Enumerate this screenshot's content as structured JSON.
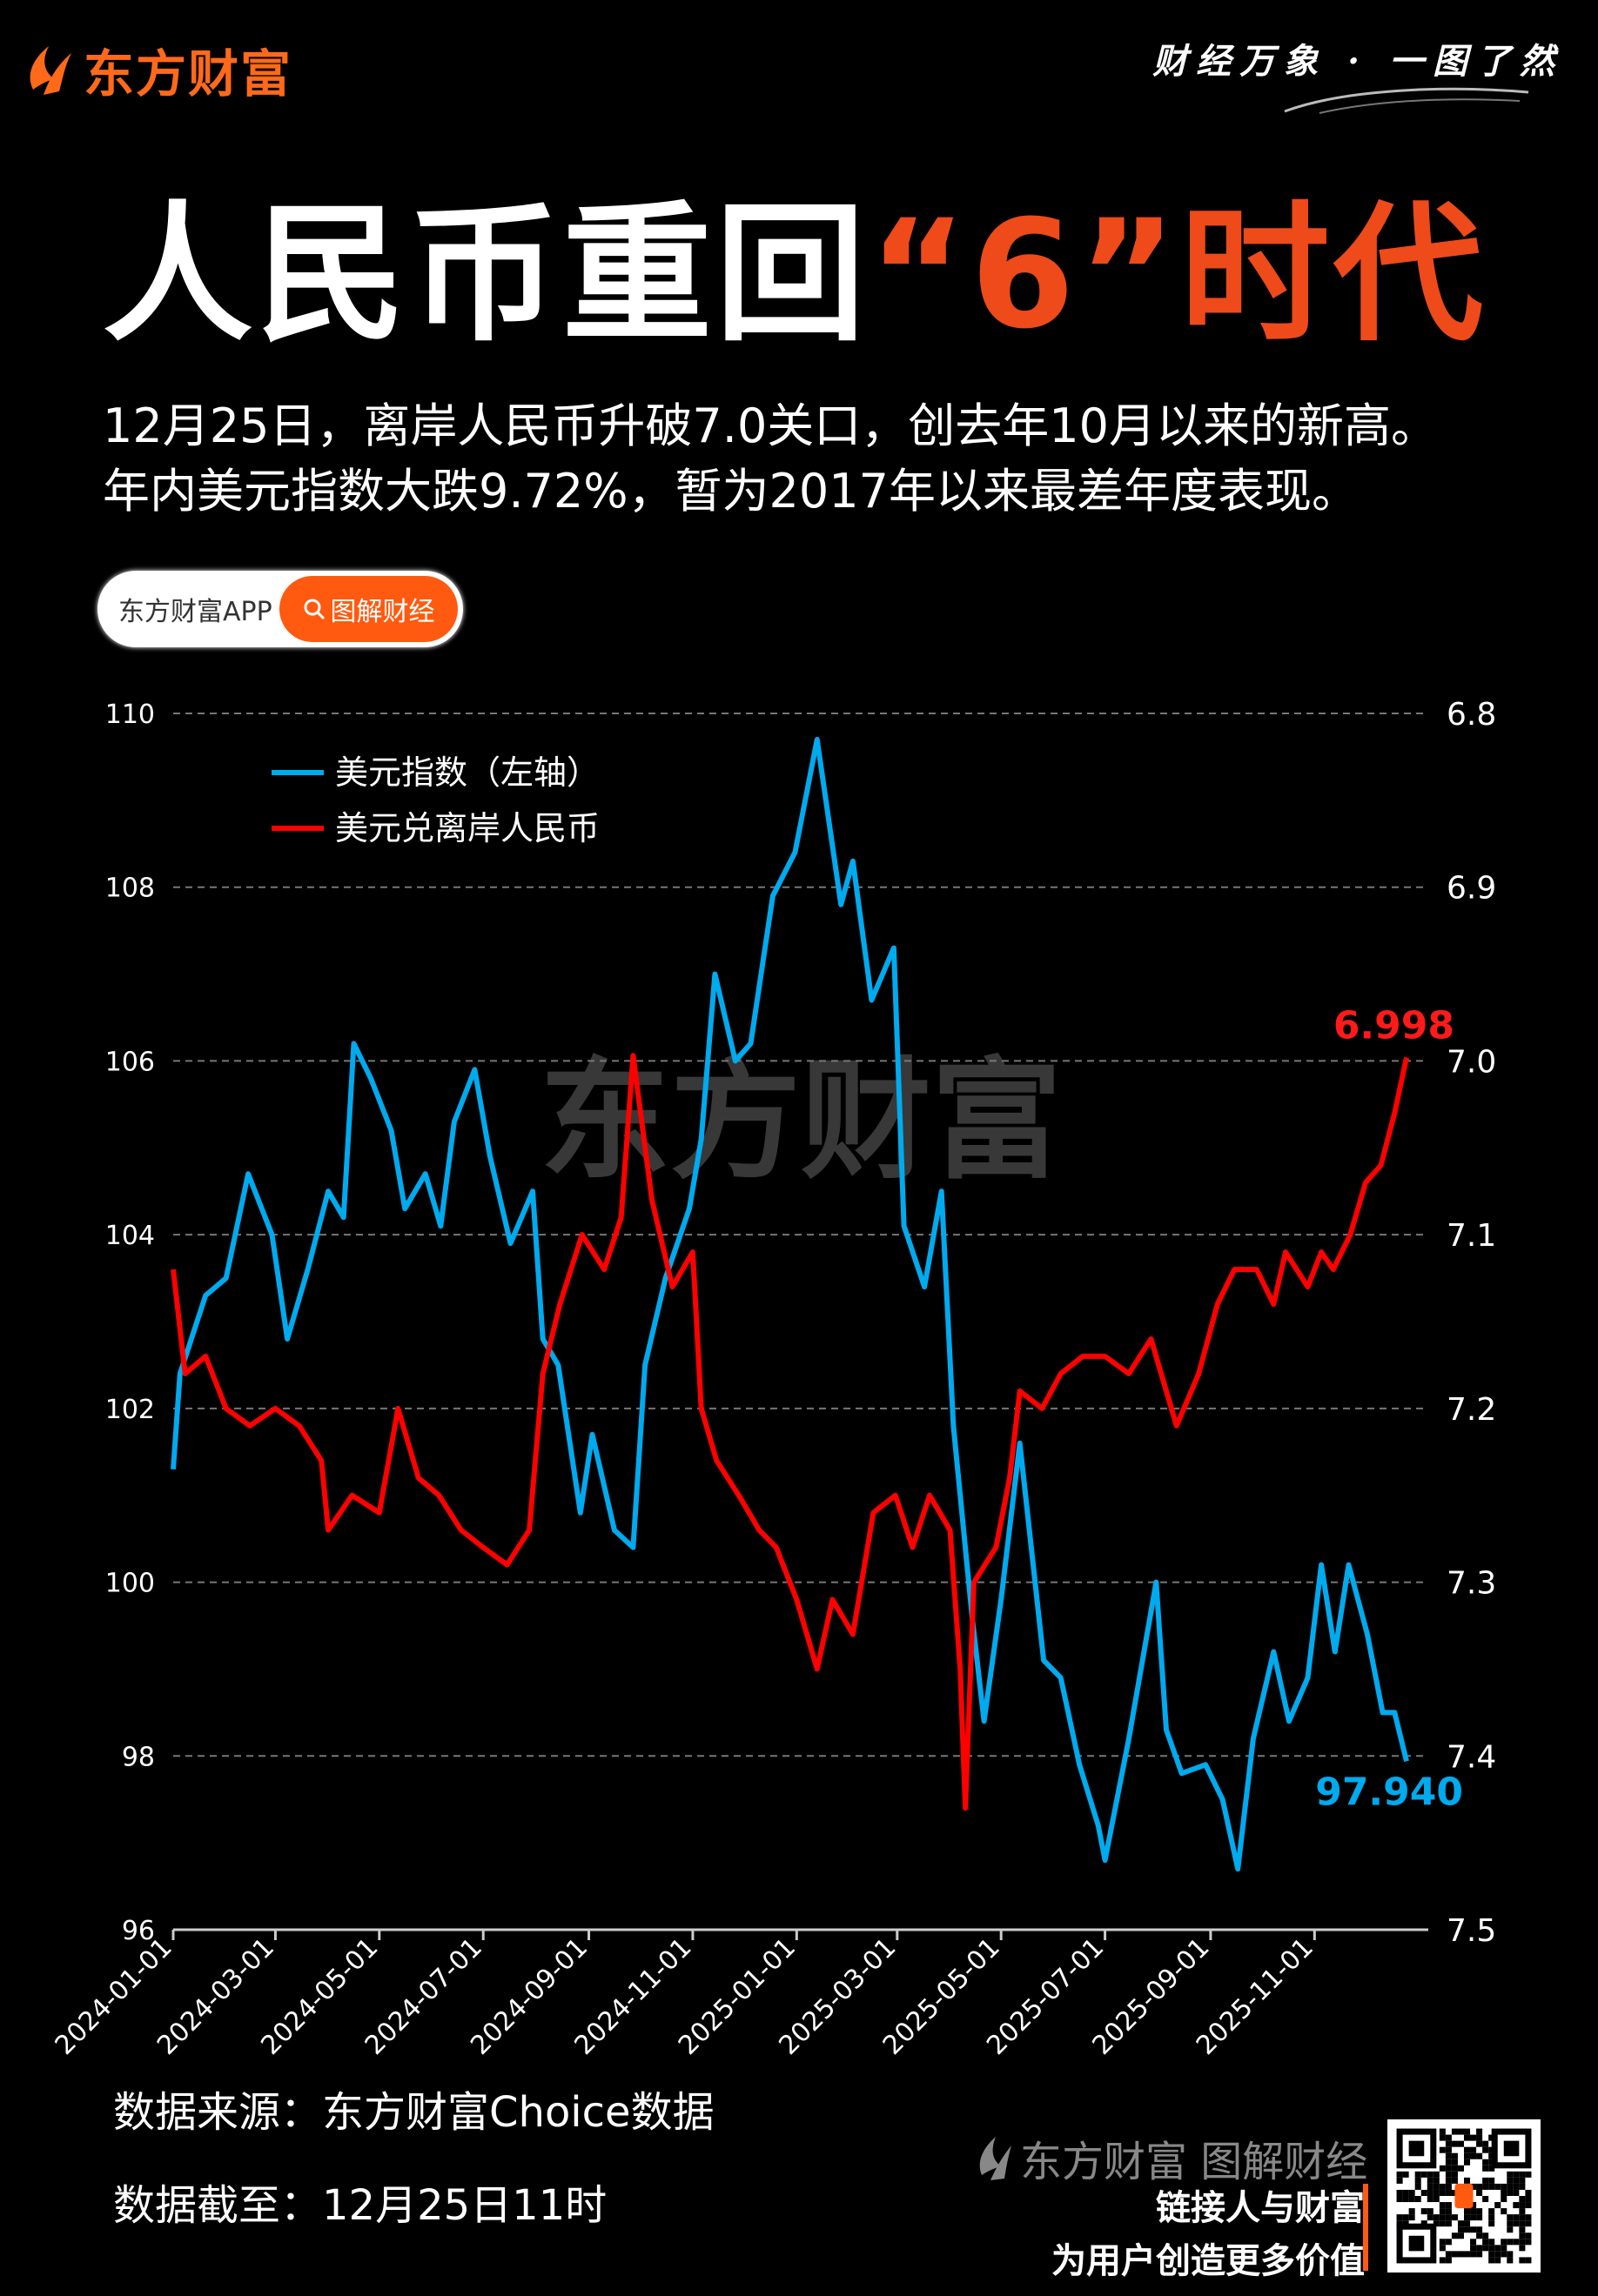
{
  "header": {
    "brand": "东方财富",
    "slogan": "财经万象 · 一图了然",
    "title_main": "人民币重回",
    "title_highlight": "“6”时代",
    "subtitle_lines": [
      "12月25日，离岸人民币升破7.0关口，创去年10月以来的新高。",
      "年内美元指数大跌9.72%，暂为2017年以来最差年度表现。"
    ],
    "pill_app": "东方财富APP",
    "pill_button": "图解财经"
  },
  "colors": {
    "accent": "#ff5a10",
    "title_highlight": "#ee4a1a",
    "dxy": "#00aaee",
    "cnh": "#ff0000",
    "background": "#000000"
  },
  "chart_data": {
    "type": "line",
    "watermark": "东方财富",
    "x_ticks": [
      "2024-01-01",
      "2024-03-01",
      "2024-05-01",
      "2024-07-01",
      "2024-09-01",
      "2024-11-01",
      "2025-01-01",
      "2025-03-01",
      "2025-05-01",
      "2025-07-01",
      "2025-09-01",
      "2025-11-01"
    ],
    "y_left": {
      "ticks": [
        "96",
        "98",
        "100",
        "102",
        "104",
        "106",
        "108",
        "110"
      ],
      "range": [
        96,
        110
      ]
    },
    "y_right": {
      "ticks": [
        "6.8",
        "6.9",
        "7.0",
        "7.1",
        "7.2",
        "7.3",
        "7.4",
        "7.5"
      ],
      "range": [
        6.8,
        7.5
      ],
      "inverted": true
    },
    "grid": "horizontal dashed",
    "legend_position": "top-left",
    "series": [
      {
        "name": "美元指数（左轴）",
        "axis": "left",
        "end_label": "97.940",
        "points": [
          [
            "2024-01-01",
            101.3
          ],
          [
            "2024-01-05",
            102.4
          ],
          [
            "2024-01-20",
            103.3
          ],
          [
            "2024-02-01",
            103.5
          ],
          [
            "2024-02-14",
            104.7
          ],
          [
            "2024-02-28",
            104.0
          ],
          [
            "2024-03-08",
            102.8
          ],
          [
            "2024-03-20",
            103.6
          ],
          [
            "2024-04-01",
            104.5
          ],
          [
            "2024-04-10",
            104.2
          ],
          [
            "2024-04-16",
            106.2
          ],
          [
            "2024-04-26",
            105.8
          ],
          [
            "2024-05-08",
            105.2
          ],
          [
            "2024-05-16",
            104.3
          ],
          [
            "2024-05-28",
            104.7
          ],
          [
            "2024-06-06",
            104.1
          ],
          [
            "2024-06-14",
            105.3
          ],
          [
            "2024-06-26",
            105.9
          ],
          [
            "2024-07-05",
            104.9
          ],
          [
            "2024-07-17",
            103.9
          ],
          [
            "2024-07-30",
            104.5
          ],
          [
            "2024-08-05",
            102.8
          ],
          [
            "2024-08-14",
            102.5
          ],
          [
            "2024-08-27",
            100.8
          ],
          [
            "2024-09-03",
            101.7
          ],
          [
            "2024-09-16",
            100.6
          ],
          [
            "2024-09-27",
            100.4
          ],
          [
            "2024-10-04",
            102.5
          ],
          [
            "2024-10-16",
            103.5
          ],
          [
            "2024-10-30",
            104.3
          ],
          [
            "2024-11-06",
            105.1
          ],
          [
            "2024-11-14",
            107.0
          ],
          [
            "2024-11-26",
            106.0
          ],
          [
            "2024-12-05",
            106.2
          ],
          [
            "2024-12-18",
            107.9
          ],
          [
            "2024-12-31",
            108.4
          ],
          [
            "2025-01-13",
            109.7
          ],
          [
            "2025-01-27",
            107.8
          ],
          [
            "2025-02-03",
            108.3
          ],
          [
            "2025-02-14",
            106.7
          ],
          [
            "2025-02-27",
            107.3
          ],
          [
            "2025-03-05",
            104.1
          ],
          [
            "2025-03-17",
            103.4
          ],
          [
            "2025-03-27",
            104.5
          ],
          [
            "2025-04-03",
            101.8
          ],
          [
            "2025-04-14",
            99.6
          ],
          [
            "2025-04-21",
            98.4
          ],
          [
            "2025-05-01",
            99.8
          ],
          [
            "2025-05-12",
            101.6
          ],
          [
            "2025-05-26",
            99.1
          ],
          [
            "2025-06-05",
            98.9
          ],
          [
            "2025-06-16",
            97.9
          ],
          [
            "2025-06-27",
            97.2
          ],
          [
            "2025-07-01",
            96.8
          ],
          [
            "2025-07-15",
            98.2
          ],
          [
            "2025-07-31",
            100.0
          ],
          [
            "2025-08-06",
            98.3
          ],
          [
            "2025-08-15",
            97.8
          ],
          [
            "2025-08-29",
            97.9
          ],
          [
            "2025-09-08",
            97.5
          ],
          [
            "2025-09-17",
            96.7
          ],
          [
            "2025-09-26",
            98.2
          ],
          [
            "2025-10-08",
            99.2
          ],
          [
            "2025-10-17",
            98.4
          ],
          [
            "2025-10-28",
            98.9
          ],
          [
            "2025-11-05",
            100.2
          ],
          [
            "2025-11-13",
            99.2
          ],
          [
            "2025-11-21",
            100.2
          ],
          [
            "2025-12-02",
            99.4
          ],
          [
            "2025-12-11",
            98.5
          ],
          [
            "2025-12-18",
            98.5
          ],
          [
            "2025-12-25",
            97.94
          ]
        ]
      },
      {
        "name": "美元兑离岸人民币",
        "axis": "right",
        "end_label": "6.998",
        "points": [
          [
            "2024-01-01",
            7.12
          ],
          [
            "2024-01-08",
            7.18
          ],
          [
            "2024-01-20",
            7.17
          ],
          [
            "2024-02-01",
            7.2
          ],
          [
            "2024-02-15",
            7.21
          ],
          [
            "2024-03-01",
            7.2
          ],
          [
            "2024-03-15",
            7.21
          ],
          [
            "2024-03-28",
            7.23
          ],
          [
            "2024-04-01",
            7.27
          ],
          [
            "2024-04-15",
            7.25
          ],
          [
            "2024-05-01",
            7.26
          ],
          [
            "2024-05-12",
            7.2
          ],
          [
            "2024-05-24",
            7.24
          ],
          [
            "2024-06-05",
            7.25
          ],
          [
            "2024-06-18",
            7.27
          ],
          [
            "2024-07-01",
            7.28
          ],
          [
            "2024-07-15",
            7.29
          ],
          [
            "2024-07-28",
            7.27
          ],
          [
            "2024-08-05",
            7.18
          ],
          [
            "2024-08-15",
            7.14
          ],
          [
            "2024-08-28",
            7.1
          ],
          [
            "2024-09-10",
            7.12
          ],
          [
            "2024-09-20",
            7.09
          ],
          [
            "2024-09-27",
            6.997
          ],
          [
            "2024-10-08",
            7.08
          ],
          [
            "2024-10-20",
            7.13
          ],
          [
            "2024-11-01",
            7.11
          ],
          [
            "2024-11-06",
            7.2
          ],
          [
            "2024-11-15",
            7.23
          ],
          [
            "2024-11-28",
            7.25
          ],
          [
            "2024-12-10",
            7.27
          ],
          [
            "2024-12-20",
            7.28
          ],
          [
            "2025-01-01",
            7.31
          ],
          [
            "2025-01-13",
            7.35
          ],
          [
            "2025-01-22",
            7.31
          ],
          [
            "2025-02-03",
            7.33
          ],
          [
            "2025-02-15",
            7.26
          ],
          [
            "2025-02-28",
            7.25
          ],
          [
            "2025-03-10",
            7.28
          ],
          [
            "2025-03-20",
            7.25
          ],
          [
            "2025-04-01",
            7.27
          ],
          [
            "2025-04-07",
            7.35
          ],
          [
            "2025-04-10",
            7.43
          ],
          [
            "2025-04-15",
            7.3
          ],
          [
            "2025-04-28",
            7.28
          ],
          [
            "2025-05-06",
            7.24
          ],
          [
            "2025-05-12",
            7.19
          ],
          [
            "2025-05-25",
            7.2
          ],
          [
            "2025-06-05",
            7.18
          ],
          [
            "2025-06-18",
            7.17
          ],
          [
            "2025-07-01",
            7.17
          ],
          [
            "2025-07-15",
            7.18
          ],
          [
            "2025-07-28",
            7.16
          ],
          [
            "2025-08-06",
            7.19
          ],
          [
            "2025-08-12",
            7.21
          ],
          [
            "2025-08-25",
            7.18
          ],
          [
            "2025-09-05",
            7.14
          ],
          [
            "2025-09-15",
            7.12
          ],
          [
            "2025-09-28",
            7.12
          ],
          [
            "2025-10-08",
            7.14
          ],
          [
            "2025-10-15",
            7.11
          ],
          [
            "2025-10-28",
            7.13
          ],
          [
            "2025-11-05",
            7.11
          ],
          [
            "2025-11-12",
            7.12
          ],
          [
            "2025-11-22",
            7.1
          ],
          [
            "2025-12-01",
            7.07
          ],
          [
            "2025-12-10",
            7.06
          ],
          [
            "2025-12-18",
            7.03
          ],
          [
            "2025-12-25",
            6.998
          ]
        ]
      }
    ]
  },
  "footer": {
    "source": "数据来源：东方财富Choice数据",
    "cutoff": "数据截至：12月25日11时",
    "brand_mark": "东方财富 图解财经",
    "slogan_1": "链接人与财富",
    "slogan_2": "为用户创造更多价值"
  }
}
